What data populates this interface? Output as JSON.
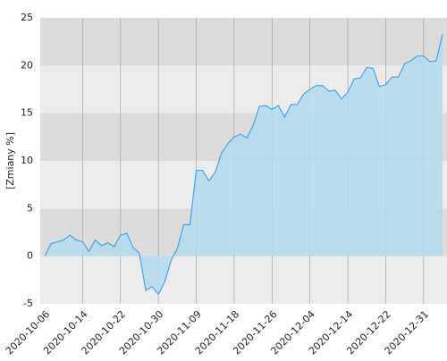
{
  "chart_data": {
    "type": "area",
    "y_label": "[Zmiany %]",
    "categories": [
      "2020-10-06",
      null,
      null,
      null,
      null,
      null,
      "2020-10-14",
      null,
      null,
      null,
      null,
      null,
      "2020-10-22",
      null,
      null,
      null,
      null,
      null,
      "2020-10-30",
      null,
      null,
      null,
      null,
      null,
      "2020-11-09",
      null,
      null,
      null,
      null,
      null,
      "2020-11-18",
      null,
      null,
      null,
      null,
      null,
      "2020-11-26",
      null,
      null,
      null,
      null,
      null,
      "2020-12-04",
      null,
      null,
      null,
      null,
      null,
      "2020-12-14",
      null,
      null,
      null,
      null,
      null,
      "2020-12-22",
      null,
      null,
      null,
      null,
      null,
      "2020-12-31",
      null,
      null,
      null
    ],
    "values": [
      0,
      1.3,
      1.5,
      1.7,
      2.2,
      1.7,
      1.5,
      0.5,
      1.7,
      1.1,
      1.4,
      1.0,
      2.2,
      2.4,
      0.9,
      0.3,
      -3.6,
      -3.2,
      -4.0,
      -2.7,
      -0.5,
      0.8,
      3.3,
      3.3,
      9.0,
      9.0,
      7.9,
      8.8,
      10.8,
      11.8,
      12.5,
      12.8,
      12.4,
      13.7,
      15.7,
      15.8,
      15.4,
      15.8,
      14.6,
      15.9,
      15.9,
      17.0,
      17.5,
      17.9,
      17.9,
      17.3,
      17.4,
      16.5,
      17.2,
      18.6,
      18.7,
      19.8,
      19.7,
      17.8,
      18.0,
      18.8,
      18.8,
      20.2,
      20.5,
      21.0,
      21.0,
      20.4,
      20.5,
      23.3
    ],
    "color": "#4aa3e8",
    "fill": "#b3dcf0",
    "ylim": [
      -5,
      25
    ],
    "yticks": [
      -5,
      0,
      5,
      10,
      15,
      20,
      25
    ],
    "band_colors": [
      "#ececec",
      "#dcdcdc"
    ],
    "grid": true
  }
}
